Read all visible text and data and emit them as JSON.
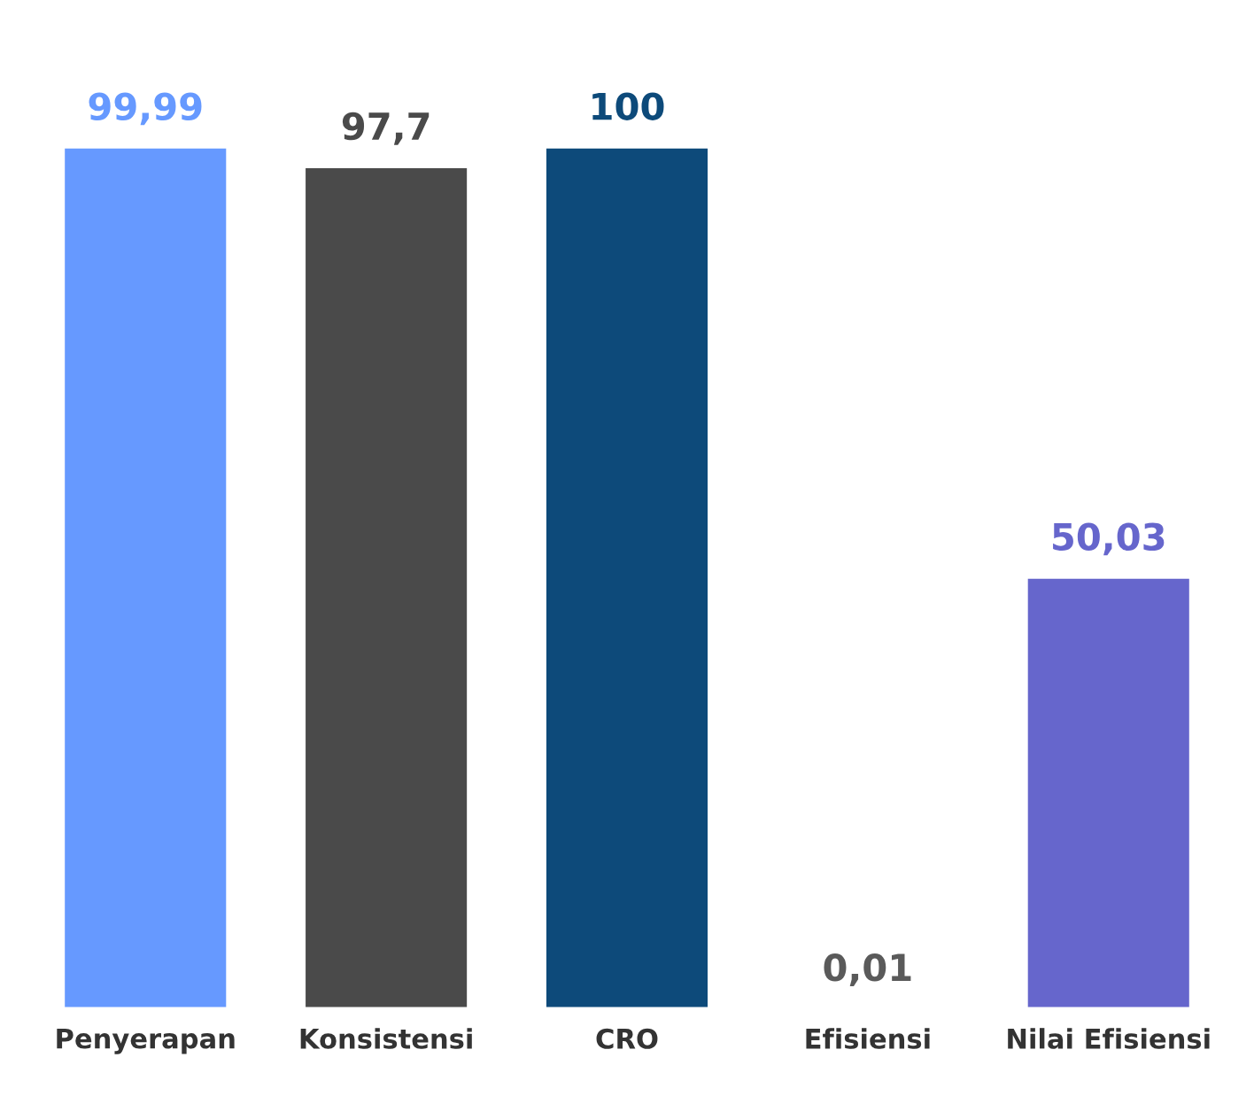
{
  "chart_data": {
    "type": "bar",
    "categories": [
      "Penyerapan",
      "Konsistensi",
      "CRO",
      "Efisiensi",
      "Nilai Efisiensi"
    ],
    "values": [
      99.99,
      97.7,
      100,
      0.01,
      50.03
    ],
    "colors": [
      "#6699ff",
      "#4a4a4a",
      "#0d4a7a",
      "#5a5a5a",
      "#6666cc"
    ],
    "value_labels": [
      "99,99",
      "97,7",
      "100",
      "0,01",
      "50,03"
    ],
    "grid": false,
    "legend": false
  }
}
